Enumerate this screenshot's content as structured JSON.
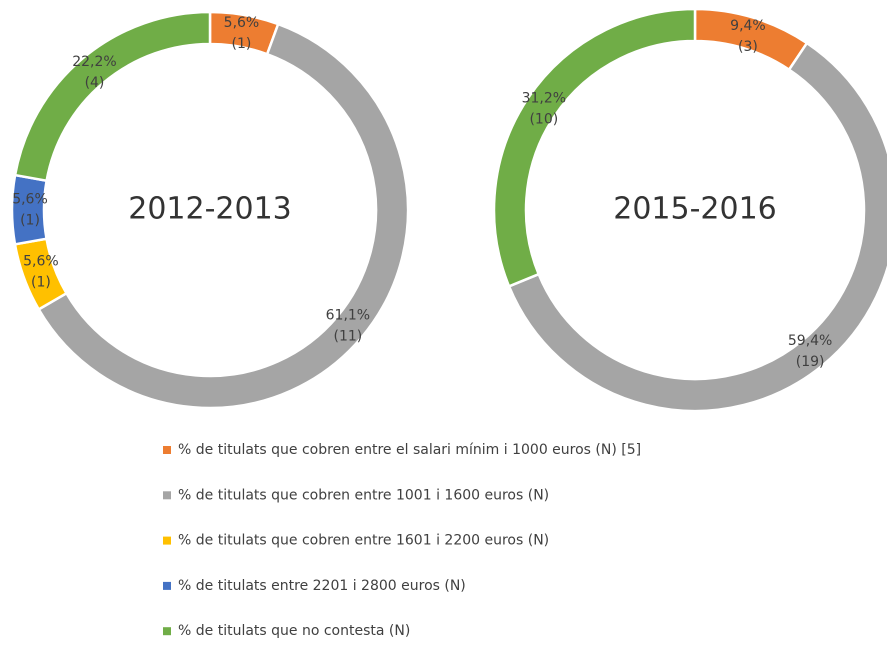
{
  "chart_data": [
    {
      "type": "pie",
      "title": "2012-2013",
      "values": [
        5.6,
        61.1,
        5.6,
        5.6,
        22.2
      ],
      "value_labels": [
        "5,6%",
        "61,1%",
        "5,6%",
        "5,6%",
        "22,2%"
      ],
      "counts": [
        1,
        11,
        1,
        1,
        4
      ],
      "count_labels": [
        "(1)",
        "(11)",
        "(1)",
        "(1)",
        "(4)"
      ]
    },
    {
      "type": "pie",
      "title": "2015-2016",
      "values": [
        9.4,
        59.4,
        null,
        null,
        31.2
      ],
      "value_labels": [
        "9,4%",
        "59,4%",
        null,
        null,
        "31,2%"
      ],
      "counts": [
        3,
        19,
        null,
        null,
        10
      ],
      "count_labels": [
        "(3)",
        "(19)",
        null,
        null,
        "(10)"
      ]
    }
  ],
  "legend": {
    "entries": [
      {
        "name": "% de titulats que cobren entre el salari mínim i 1000 euros (N) [5]",
        "color": "#ed7d31"
      },
      {
        "name": "% de titulats que cobren entre 1001 i 1600 euros (N)",
        "color": "#a5a5a5"
      },
      {
        "name": "% de titulats que cobren entre 1601 i 2200 euros (N)",
        "color": "#ffc000"
      },
      {
        "name": "% de titulats entre 2201 i 2800 euros (N)",
        "color": "#4472c4"
      },
      {
        "name": "% de titulats que no contesta (N)",
        "color": "#70ad47"
      }
    ]
  }
}
